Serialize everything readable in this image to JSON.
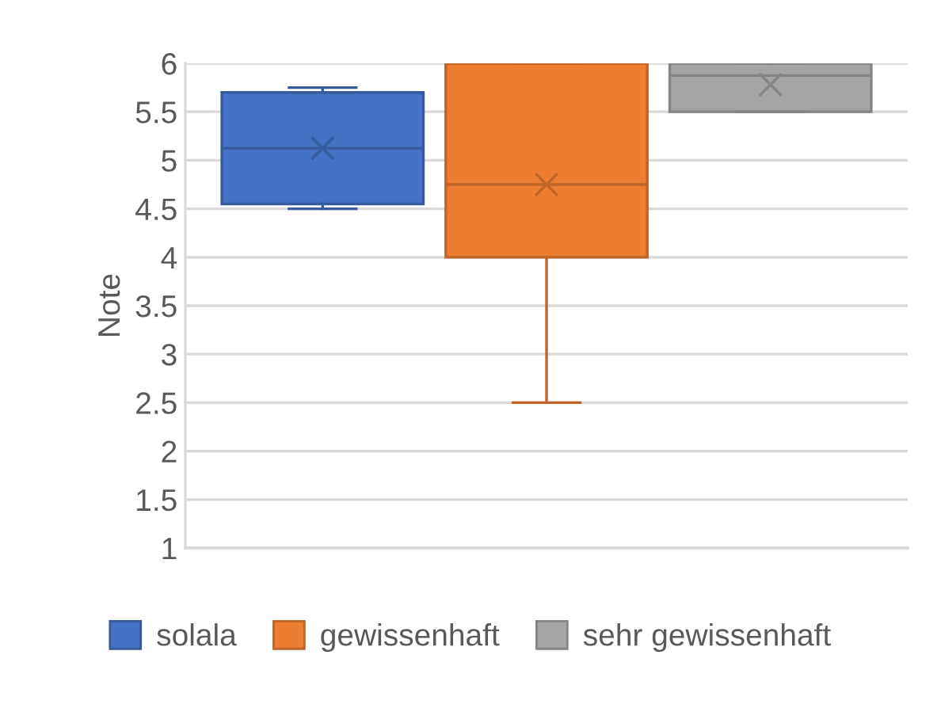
{
  "chart_data": {
    "type": "box",
    "ylabel": "Note",
    "categories": [
      null
    ],
    "ylim": [
      1,
      6
    ],
    "yticks": [
      1,
      1.5,
      2,
      2.5,
      3,
      3.5,
      4,
      4.5,
      5,
      5.5,
      6
    ],
    "grid": "y",
    "legend": "bottom",
    "series": [
      {
        "name": "solala",
        "color": "#4472c4",
        "boxes": [
          {
            "low": 4.5,
            "q1": 4.55,
            "median": 5.125,
            "q3": 5.7,
            "high": 5.75,
            "mean": 5.125
          }
        ]
      },
      {
        "name": "gewissenhaft",
        "color": "#ed7d31",
        "boxes": [
          {
            "low": 2.5,
            "q1": 4,
            "median": 4.75,
            "q3": 6,
            "high": 6,
            "mean": 4.75
          }
        ]
      },
      {
        "name": "sehr gewissenhaft",
        "color": "#a5a5a5",
        "boxes": [
          {
            "low": 5.5,
            "q1": 5.5,
            "median": 5.875,
            "q3": 6,
            "high": 6,
            "mean": 5.78
          }
        ]
      }
    ]
  }
}
